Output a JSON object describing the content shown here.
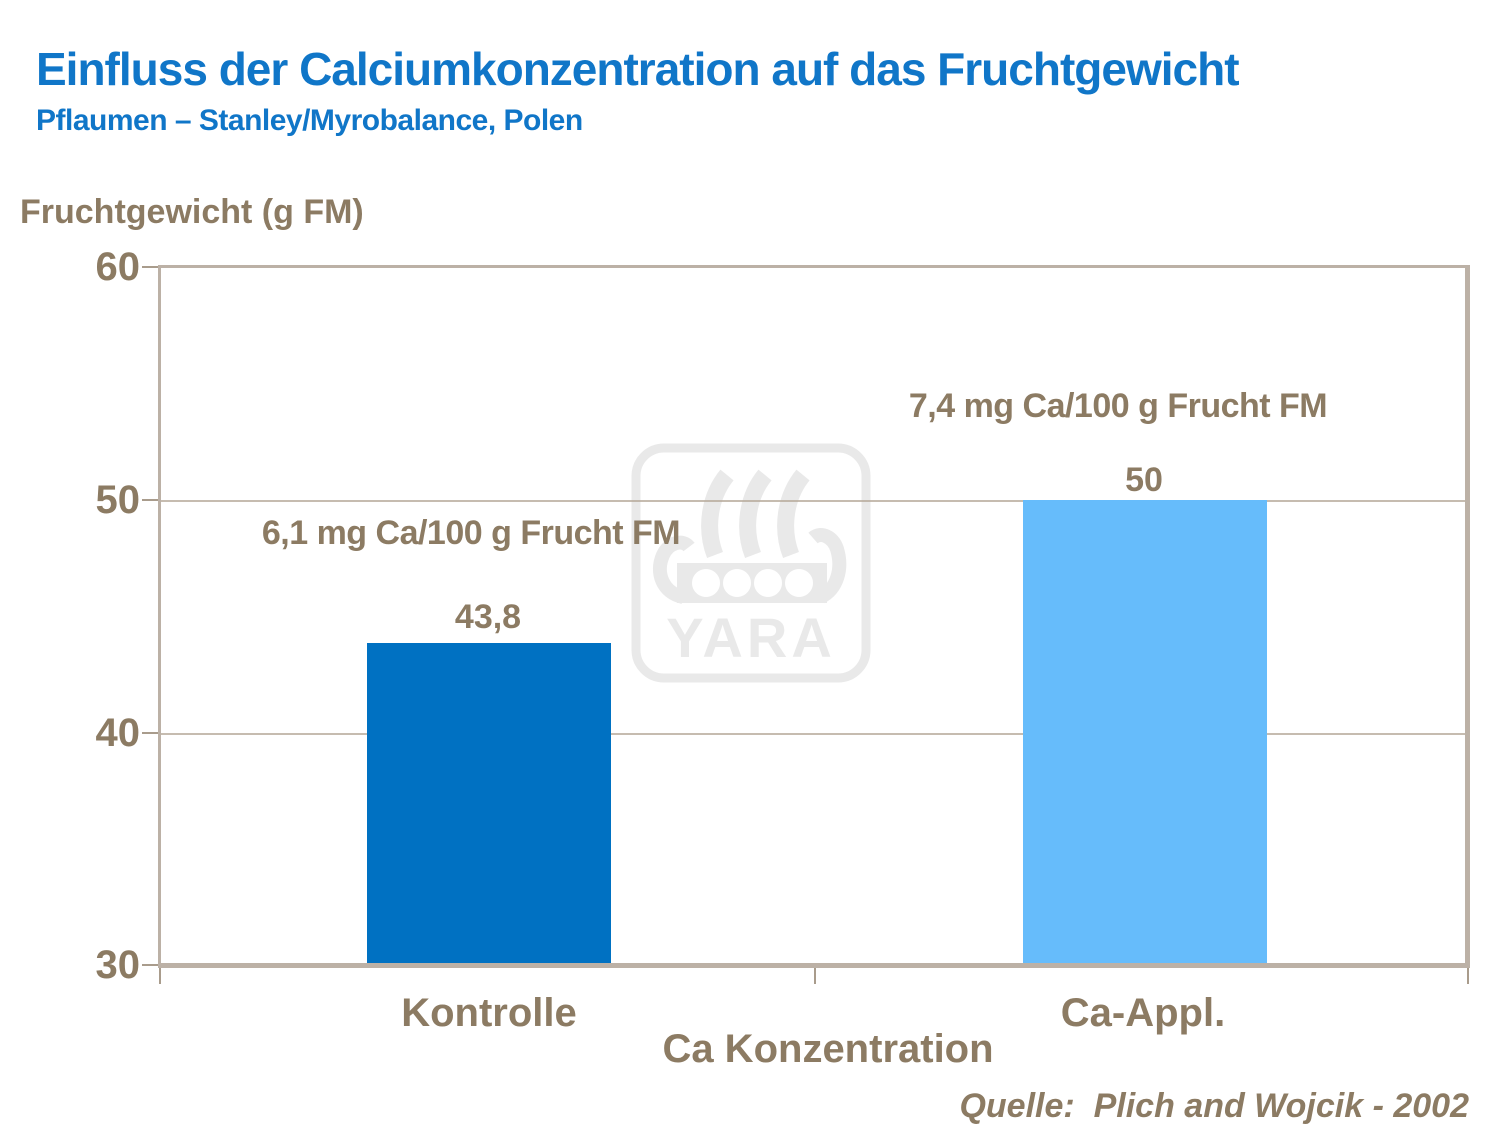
{
  "header": {
    "title": "Einfluss der Calciumkonzentration auf das Fruchtgewicht",
    "subtitle": "Pflaumen – Stanley/Myrobalance, Polen"
  },
  "source_text": "Quelle:  Plich and Wojcik - 2002",
  "watermark_text": "YARA",
  "colors": {
    "title_blue": "#1076C8",
    "text_taupe": "#8C7B63",
    "axis_frame": "#BCB1A6",
    "gridline": "#B3A596",
    "bar_dark_blue": "#0071C2",
    "bar_light_blue": "#66BCFB",
    "watermark_gray": "#E9E9E9"
  },
  "chart_data": {
    "type": "bar",
    "title": "Einfluss der Calciumkonzentration auf das Fruchtgewicht",
    "subtitle": "Pflaumen – Stanley/Myrobalance, Polen",
    "xlabel": "Ca Konzentration",
    "ylabel": "Fruchtgewicht (g FM)",
    "categories": [
      "Kontrolle",
      "Ca-Appl."
    ],
    "values": [
      43.8,
      50
    ],
    "value_labels": [
      "43,8",
      "50"
    ],
    "annotations": [
      "6,1 mg Ca/100 g Frucht FM",
      "7,4 mg Ca/100 g Frucht FM"
    ],
    "bar_colors": [
      "#0071C2",
      "#66BCFB"
    ],
    "ylim": [
      30,
      60
    ],
    "yticks": [
      30,
      40,
      50,
      60
    ],
    "ytick_labels_display": [
      "60",
      "50",
      "40",
      "30"
    ],
    "grid": true,
    "legend": false,
    "source": "Quelle:  Plich and Wojcik - 2002"
  }
}
